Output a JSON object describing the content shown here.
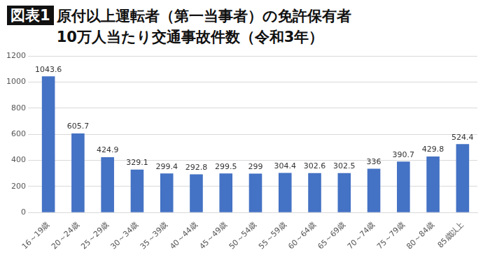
{
  "figure_label": "図表1",
  "chart_data": {
    "type": "bar",
    "title": [
      "原付以上運転者（第一当事者）の免許保有者",
      "10万人当たり交通事故件数（令和3年）"
    ],
    "categories": [
      "16～19歳",
      "20～24歳",
      "25～29歳",
      "30～34歳",
      "35～39歳",
      "40～44歳",
      "45～49歳",
      "50～54歳",
      "55～59歳",
      "60～64歳",
      "65～69歳",
      "70～74歳",
      "75～79歳",
      "80～84歳",
      "85歳以上"
    ],
    "values": [
      1043.6,
      605.7,
      424.9,
      329.1,
      299.4,
      292.8,
      299.5,
      299,
      304.4,
      302.6,
      302.5,
      336,
      390.7,
      429.8,
      524.4
    ],
    "color": "#4472c4",
    "ylim": [
      0,
      1200
    ],
    "yticks": [
      0,
      200,
      400,
      600,
      800,
      1000,
      1200
    ],
    "grid": true,
    "data_labels": true
  }
}
